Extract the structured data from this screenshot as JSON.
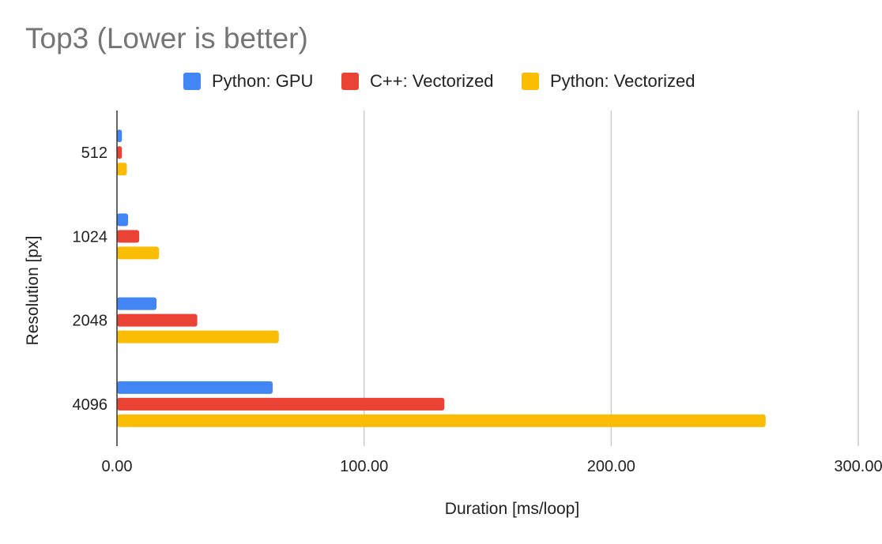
{
  "chart_data": {
    "type": "bar",
    "orientation": "horizontal",
    "title": "Top3 (Lower is better)",
    "xlabel": "Duration [ms/loop]",
    "ylabel": "Resolution [px]",
    "categories": [
      "512",
      "1024",
      "2048",
      "4096"
    ],
    "series": [
      {
        "name": "Python: GPU",
        "color": "#4285F4",
        "values": [
          2.0,
          4.5,
          16.0,
          63.0
        ]
      },
      {
        "name": "C++: Vectorized",
        "color": "#EA4335",
        "values": [
          2.0,
          9.0,
          32.5,
          132.5
        ]
      },
      {
        "name": "Python: Vectorized",
        "color": "#FBBC04",
        "values": [
          4.0,
          17.0,
          65.5,
          262.5
        ]
      }
    ],
    "xlim": [
      0,
      300
    ],
    "xticks": [
      "0.00",
      "100.00",
      "200.00",
      "300.00"
    ],
    "grid": true,
    "legend": "top"
  }
}
